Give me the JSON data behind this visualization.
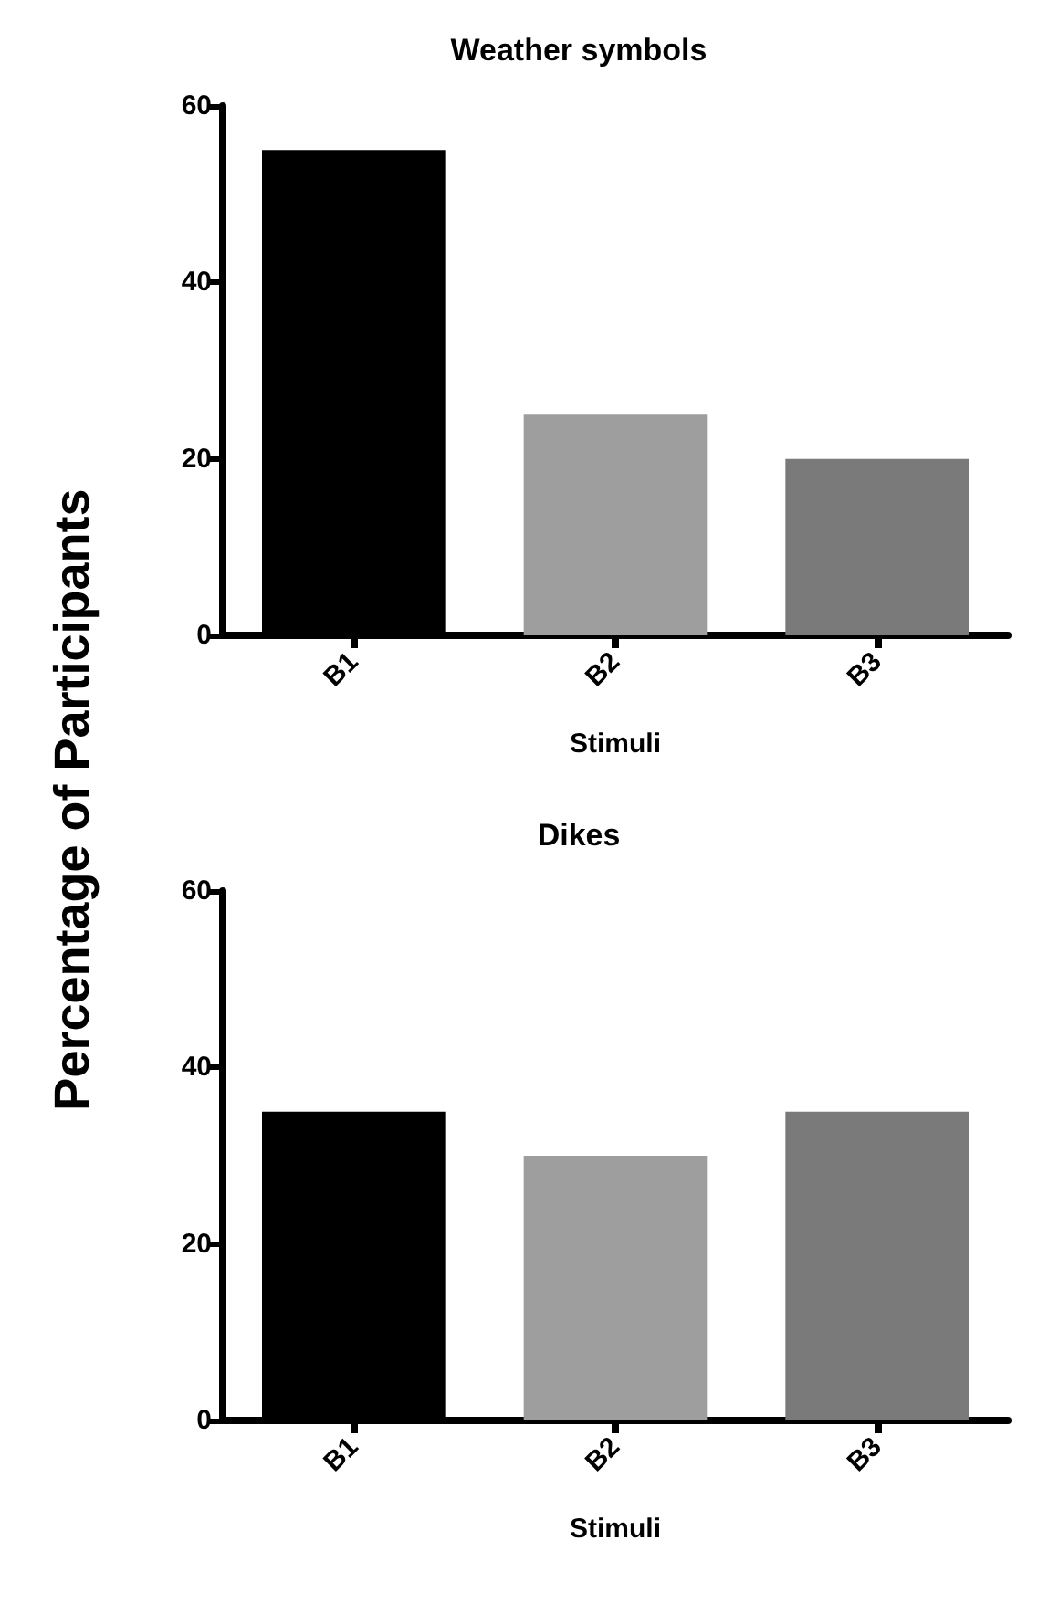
{
  "chart_data": [
    {
      "type": "bar",
      "title": "Weather symbols",
      "xlabel": "Stimuli",
      "ylabel": "Percentage of Participants",
      "categories": [
        "B1",
        "B2",
        "B3"
      ],
      "values": [
        55,
        25,
        20
      ],
      "colors": [
        "#000000",
        "#9e9e9e",
        "#7a7a7a"
      ],
      "ylim": [
        0,
        60
      ],
      "yticks": [
        0,
        20,
        40,
        60
      ],
      "grid": false
    },
    {
      "type": "bar",
      "title": "Dikes",
      "xlabel": "Stimuli",
      "categories": [
        "B1",
        "B2",
        "B3"
      ],
      "values": [
        35,
        30,
        35
      ],
      "colors": [
        "#000000",
        "#9e9e9e",
        "#7a7a7a"
      ],
      "ylim": [
        0,
        60
      ],
      "yticks": [
        0,
        20,
        40,
        60
      ],
      "grid": false
    }
  ]
}
